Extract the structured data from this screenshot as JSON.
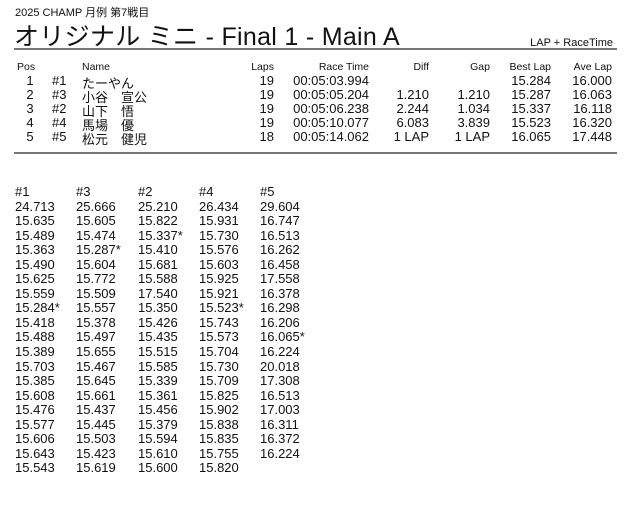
{
  "header": {
    "subtitle": "2025  CHAMP 月例 第7戦目",
    "title": "オリジナル  ミニ  -  Final 1  -  Main A",
    "mode": "LAP + RaceTime"
  },
  "results": {
    "columns": {
      "pos": "Pos",
      "no": "",
      "name": "Name",
      "laps": "Laps",
      "time": "Race Time",
      "diff": "Diff",
      "gap": "Gap",
      "best": "Best Lap",
      "ave": "Ave Lap"
    },
    "rows": [
      {
        "pos": "1",
        "no": "#1",
        "name": "たーやん",
        "laps": "19",
        "time": "00:05:03.994",
        "diff": "",
        "gap": "",
        "best": "15.284",
        "ave": "16.000"
      },
      {
        "pos": "2",
        "no": "#3",
        "name": "小谷　宣公",
        "laps": "19",
        "time": "00:05:05.204",
        "diff": "1.210",
        "gap": "1.210",
        "best": "15.287",
        "ave": "16.063"
      },
      {
        "pos": "3",
        "no": "#2",
        "name": "山下　悟",
        "laps": "19",
        "time": "00:05:06.238",
        "diff": "2.244",
        "gap": "1.034",
        "best": "15.337",
        "ave": "16.118"
      },
      {
        "pos": "4",
        "no": "#4",
        "name": "馬場　優",
        "laps": "19",
        "time": "00:05:10.077",
        "diff": "6.083",
        "gap": "3.839",
        "best": "15.523",
        "ave": "16.320"
      },
      {
        "pos": "5",
        "no": "#5",
        "name": "松元　健児",
        "laps": "18",
        "time": "00:05:14.062",
        "diff": "1 LAP",
        "gap": "1 LAP",
        "best": "16.065",
        "ave": "17.448"
      }
    ]
  },
  "laps": [
    {
      "car": "#1",
      "times": [
        "24.713",
        "15.635",
        "15.489",
        "15.363",
        "15.490",
        "15.625",
        "15.559",
        "15.284*",
        "15.418",
        "15.488",
        "15.389",
        "15.703",
        "15.385",
        "15.608",
        "15.476",
        "15.577",
        "15.606",
        "15.643",
        "15.543"
      ]
    },
    {
      "car": "#3",
      "times": [
        "25.666",
        "15.605",
        "15.474",
        "15.287*",
        "15.604",
        "15.772",
        "15.509",
        "15.557",
        "15.378",
        "15.497",
        "15.655",
        "15.467",
        "15.645",
        "15.661",
        "15.437",
        "15.445",
        "15.503",
        "15.423",
        "15.619"
      ]
    },
    {
      "car": "#2",
      "times": [
        "25.210",
        "15.822",
        "15.337*",
        "15.410",
        "15.681",
        "15.588",
        "17.540",
        "15.350",
        "15.426",
        "15.435",
        "15.515",
        "15.585",
        "15.339",
        "15.361",
        "15.456",
        "15.379",
        "15.594",
        "15.610",
        "15.600"
      ]
    },
    {
      "car": "#4",
      "times": [
        "26.434",
        "15.931",
        "15.730",
        "15.576",
        "15.603",
        "15.925",
        "15.921",
        "15.523*",
        "15.743",
        "15.573",
        "15.704",
        "15.730",
        "15.709",
        "15.825",
        "15.902",
        "15.838",
        "15.835",
        "15.755",
        "15.820"
      ]
    },
    {
      "car": "#5",
      "times": [
        "29.604",
        "16.747",
        "16.513",
        "16.262",
        "16.458",
        "17.558",
        "16.378",
        "16.298",
        "16.206",
        "16.065*",
        "16.224",
        "20.018",
        "17.308",
        "16.513",
        "17.003",
        "16.311",
        "16.372",
        "16.224"
      ]
    }
  ]
}
